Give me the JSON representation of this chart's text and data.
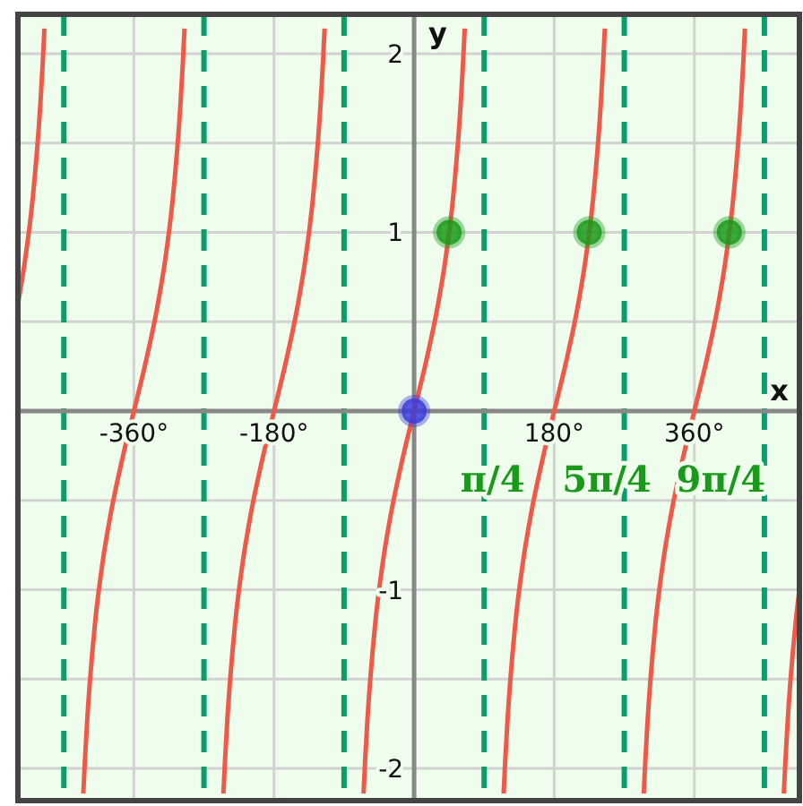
{
  "chart_data": {
    "type": "line",
    "xlabel": "x",
    "ylabel": "y",
    "xlim": [
      -509,
      495
    ],
    "ylim": [
      -2.18,
      2.22
    ],
    "xticks": [
      {
        "value": -360,
        "label": "-360°"
      },
      {
        "value": -180,
        "label": "-180°"
      },
      {
        "value": 180,
        "label": "180°"
      },
      {
        "value": 360,
        "label": "360°"
      }
    ],
    "yticks": [
      {
        "value": -2,
        "label": "-2"
      },
      {
        "value": -1.5,
        "label": null
      },
      {
        "value": -1,
        "label": "-1"
      },
      {
        "value": -0.5,
        "label": null
      },
      {
        "value": 0.5,
        "label": null
      },
      {
        "value": 1,
        "label": "1"
      },
      {
        "value": 1.5,
        "label": null
      },
      2
    ],
    "grid": true,
    "marker": "none",
    "series": [
      {
        "color": "#f0584a",
        "x": [
          -509,
          -500,
          -490,
          -480,
          -477,
          -475
        ],
        "values": [
          0.6,
          0.84,
          1.19,
          1.73,
          1.96,
          2.14
        ]
      },
      {
        "color": "#f0584a",
        "x": [
          -425,
          -423,
          -420,
          -410,
          -400,
          -390,
          -375,
          -360,
          -345,
          -330,
          -320,
          -310,
          -300,
          -297,
          -295
        ],
        "values": [
          -2.14,
          -1.96,
          -1.73,
          -1.19,
          -0.84,
          -0.58,
          -0.27,
          0,
          0.27,
          0.58,
          0.84,
          1.19,
          1.73,
          1.96,
          2.14
        ]
      },
      {
        "color": "#f0584a",
        "x": [
          -245,
          -243,
          -240,
          -230,
          -220,
          -210,
          -195,
          -180,
          -165,
          -150,
          -140,
          -130,
          -120,
          -117,
          -115
        ],
        "values": [
          -2.14,
          -1.96,
          -1.73,
          -1.19,
          -0.84,
          -0.58,
          -0.27,
          0,
          0.27,
          0.58,
          0.84,
          1.19,
          1.73,
          1.96,
          2.14
        ]
      },
      {
        "color": "#f0584a",
        "x": [
          -65,
          -63,
          -60,
          -50,
          -40,
          -30,
          -15,
          0,
          15,
          30,
          40,
          50,
          60,
          63,
          65
        ],
        "values": [
          -2.14,
          -1.96,
          -1.73,
          -1.19,
          -0.84,
          -0.58,
          -0.27,
          0,
          0.27,
          0.58,
          0.84,
          1.19,
          1.73,
          1.96,
          2.14
        ]
      },
      {
        "color": "#f0584a",
        "x": [
          115,
          117,
          120,
          130,
          140,
          150,
          165,
          180,
          195,
          210,
          220,
          230,
          240,
          243,
          245
        ],
        "values": [
          -2.14,
          -1.96,
          -1.73,
          -1.19,
          -0.84,
          -0.58,
          -0.27,
          0,
          0.27,
          0.58,
          0.84,
          1.19,
          1.73,
          1.96,
          2.14
        ]
      },
      {
        "color": "#f0584a",
        "x": [
          295,
          297,
          300,
          310,
          320,
          330,
          345,
          360,
          375,
          390,
          400,
          410,
          420,
          423,
          425
        ],
        "values": [
          -2.14,
          -1.96,
          -1.73,
          -1.19,
          -0.84,
          -0.58,
          -0.27,
          0,
          0.27,
          0.58,
          0.84,
          1.19,
          1.73,
          1.96,
          2.14
        ]
      },
      {
        "color": "#f0584a",
        "x": [
          475,
          477,
          480,
          490,
          495
        ],
        "values": [
          -2.14,
          -1.96,
          -1.73,
          -1.19,
          -1
        ]
      },
      {
        "type": "scatter",
        "marker": "circle",
        "color": "#1a9a1a",
        "x": [
          45,
          225,
          405
        ],
        "values": [
          1,
          1,
          1
        ]
      },
      {
        "type": "scatter",
        "marker": "circle",
        "color": "#3b3bdc",
        "x": [
          0
        ],
        "values": [
          0
        ]
      }
    ],
    "ref_lines": [
      {
        "axis": "x",
        "value": -450,
        "color": "#0a9e6a",
        "line_style": "dashed"
      },
      {
        "axis": "x",
        "value": -270,
        "color": "#0a9e6a",
        "line_style": "dashed"
      },
      {
        "axis": "x",
        "value": -90,
        "color": "#0a9e6a",
        "line_style": "dashed"
      },
      {
        "axis": "x",
        "value": 90,
        "color": "#0a9e6a",
        "line_style": "dashed"
      },
      {
        "axis": "x",
        "value": 270,
        "color": "#0a9e6a",
        "line_style": "dashed"
      },
      {
        "axis": "x",
        "value": 450,
        "color": "#0a9e6a",
        "line_style": "dashed"
      }
    ],
    "annotations": [
      "π/4",
      "5π/4",
      "9π/4"
    ]
  }
}
